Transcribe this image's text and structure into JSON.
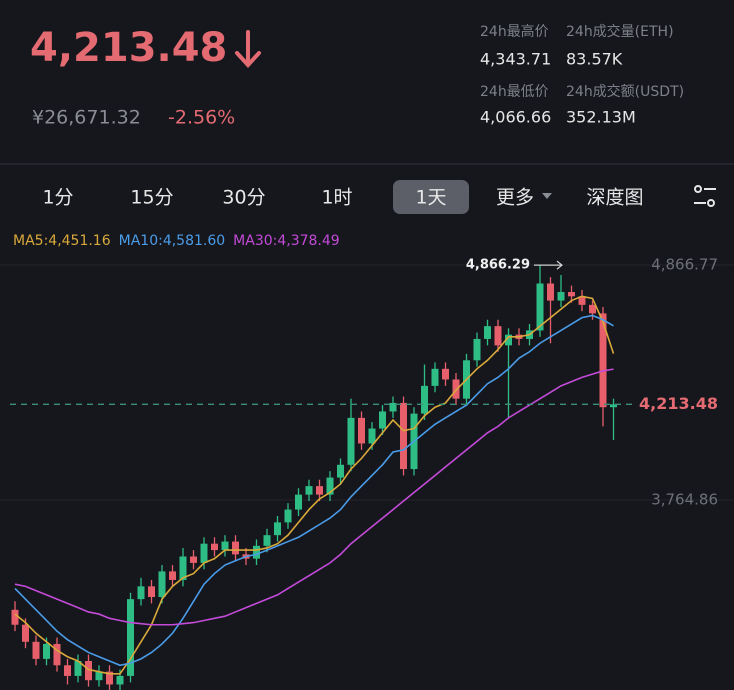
{
  "header": {
    "price": "4,213.48",
    "fiat": "¥26,671.32",
    "change": "-2.56%"
  },
  "stats": [
    {
      "label": "24h最高价",
      "value": "4,343.71"
    },
    {
      "label": "24h成交量(ETH)",
      "value": "83.57K"
    },
    {
      "label": "24h最低价",
      "value": "4,066.66"
    },
    {
      "label": "24h成交额(USDT)",
      "value": "352.13M"
    }
  ],
  "tabs": [
    "1分",
    "15分",
    "30分",
    "1时",
    "1天",
    "更多",
    "深度图"
  ],
  "active_tab": 4,
  "chart_data": {
    "type": "candlestick",
    "up_color": "#2ebd85",
    "down_color": "#e65f6b",
    "open": [
      3250,
      3180,
      3100,
      3020,
      3090,
      2990,
      2940,
      3010,
      2920,
      2960,
      2900,
      2940,
      3300,
      3360,
      3310,
      3430,
      3390,
      3500,
      3470,
      3560,
      3530,
      3570,
      3510,
      3490,
      3550,
      3600,
      3660,
      3720,
      3790,
      3830,
      3790,
      3870,
      3930,
      4150,
      4030,
      4100,
      4180,
      4220,
      3910,
      4170,
      4300,
      4380,
      4330,
      4240,
      4420,
      4520,
      4580,
      4490,
      4540,
      4520,
      4560,
      4780,
      4700,
      4740,
      4720,
      4680,
      4640,
      4200
    ],
    "high": [
      3290,
      3210,
      3130,
      3120,
      3120,
      3020,
      3040,
      3040,
      2990,
      2990,
      2970,
      3330,
      3400,
      3390,
      3460,
      3460,
      3540,
      3530,
      3590,
      3590,
      3600,
      3600,
      3540,
      3580,
      3630,
      3690,
      3750,
      3820,
      3860,
      3860,
      3900,
      3960,
      4240,
      4180,
      4130,
      4210,
      4250,
      4250,
      4200,
      4400,
      4410,
      4410,
      4360,
      4450,
      4550,
      4610,
      4610,
      4570,
      4570,
      4590,
      4866.29,
      4810,
      4820,
      4770,
      4750,
      4700,
      4670,
      4240
    ],
    "low": [
      3150,
      3070,
      2990,
      2990,
      2960,
      2900,
      2910,
      2890,
      2890,
      2870,
      2870,
      2910,
      3270,
      3280,
      3280,
      3360,
      3360,
      3440,
      3440,
      3500,
      3500,
      3480,
      3460,
      3460,
      3520,
      3570,
      3630,
      3690,
      3760,
      3760,
      3760,
      3840,
      3900,
      4000,
      4000,
      4070,
      4150,
      3880,
      3880,
      4140,
      4270,
      4300,
      4210,
      4210,
      4390,
      4490,
      4460,
      4150,
      4490,
      4490,
      4530,
      4500,
      4670,
      4690,
      4650,
      4610,
      4110,
      4046
    ],
    "close": [
      3180,
      3100,
      3020,
      3090,
      2990,
      2940,
      3010,
      2920,
      2960,
      2900,
      2940,
      3300,
      3360,
      3310,
      3430,
      3390,
      3500,
      3470,
      3560,
      3530,
      3570,
      3510,
      3490,
      3550,
      3600,
      3660,
      3720,
      3790,
      3830,
      3790,
      3870,
      3930,
      4150,
      4030,
      4100,
      4180,
      4220,
      3910,
      4170,
      4300,
      4380,
      4330,
      4240,
      4420,
      4520,
      4580,
      4490,
      4540,
      4520,
      4560,
      4780,
      4700,
      4740,
      4720,
      4680,
      4640,
      4200,
      4213.48
    ],
    "series": [
      {
        "name": "MA5:4,451.16",
        "color": "#d9a93a",
        "values": [
          3230,
          3190,
          3140,
          3100,
          3060,
          3030,
          3010,
          2970,
          2960,
          2950,
          2950,
          3020,
          3100,
          3180,
          3300,
          3360,
          3400,
          3420,
          3470,
          3490,
          3530,
          3530,
          3530,
          3530,
          3540,
          3560,
          3600,
          3660,
          3720,
          3770,
          3800,
          3840,
          3910,
          3960,
          4020,
          4080,
          4140,
          4090,
          4100,
          4160,
          4200,
          4220,
          4280,
          4330,
          4380,
          4420,
          4470,
          4530,
          4530,
          4540,
          4580,
          4620,
          4660,
          4700,
          4720,
          4710,
          4600,
          4451.16
        ]
      },
      {
        "name": "MA10:4,581.60",
        "color": "#4a9ce8",
        "values": [
          3350,
          3300,
          3250,
          3200,
          3150,
          3110,
          3080,
          3050,
          3030,
          3010,
          2990,
          3000,
          3020,
          3050,
          3090,
          3140,
          3210,
          3290,
          3370,
          3420,
          3460,
          3480,
          3500,
          3510,
          3530,
          3550,
          3570,
          3590,
          3620,
          3650,
          3680,
          3720,
          3780,
          3830,
          3880,
          3930,
          3990,
          4000,
          4040,
          4080,
          4120,
          4150,
          4180,
          4210,
          4260,
          4310,
          4340,
          4380,
          4430,
          4460,
          4500,
          4530,
          4560,
          4590,
          4620,
          4630,
          4610,
          4581.6
        ]
      },
      {
        "name": "MA30:4,378.49",
        "color": "#c34bd8",
        "values": [
          3370,
          3360,
          3340,
          3320,
          3300,
          3280,
          3260,
          3240,
          3230,
          3210,
          3200,
          3190,
          3185,
          3180,
          3180,
          3180,
          3185,
          3190,
          3200,
          3210,
          3220,
          3240,
          3260,
          3280,
          3300,
          3320,
          3350,
          3380,
          3410,
          3440,
          3470,
          3510,
          3560,
          3600,
          3640,
          3680,
          3720,
          3760,
          3800,
          3840,
          3880,
          3920,
          3960,
          4000,
          4040,
          4080,
          4110,
          4150,
          4180,
          4210,
          4240,
          4270,
          4300,
          4320,
          4340,
          4355,
          4370,
          4378.49
        ]
      }
    ],
    "ylim": [
      2874,
      4984
    ],
    "yticks": [
      {
        "value": 3764.86,
        "label": "3,764.86"
      },
      {
        "value": 4866.77,
        "label": "4,866.77"
      }
    ],
    "grid": true,
    "last_price_label": "4,213.48",
    "high_label": "4,866.29"
  }
}
